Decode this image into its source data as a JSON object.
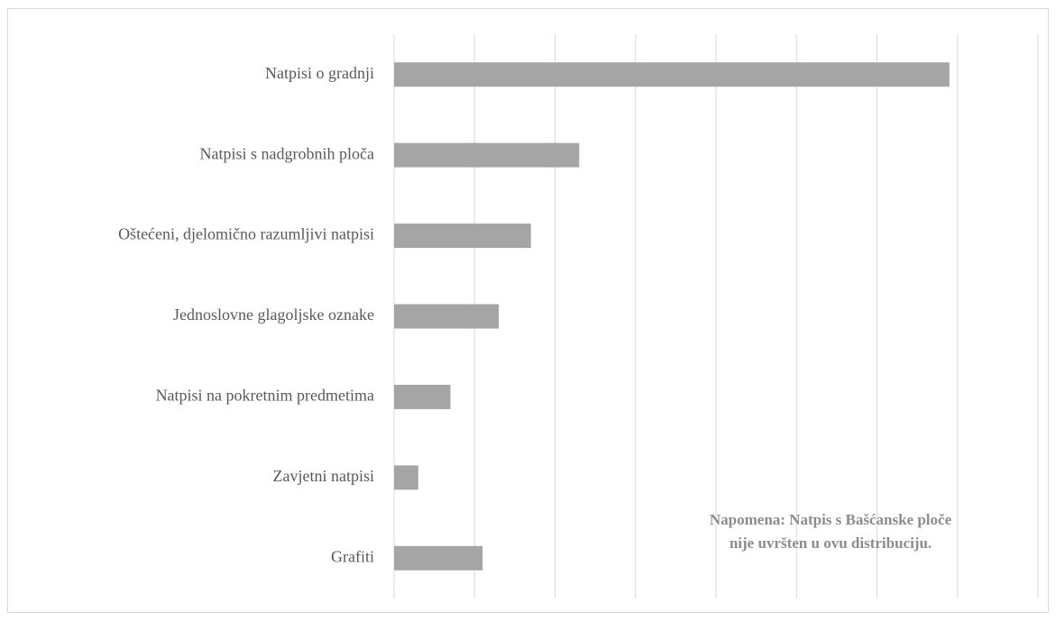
{
  "chart_data": {
    "type": "bar",
    "orientation": "horizontal",
    "categories": [
      "Natpisi o gradnji",
      "Natpisi s nadgrobnih ploča",
      "Oštećeni, djelomično razumljivi natpisi",
      "Jednoslovne glagoljske oznake",
      "Natpisi na pokretnim predmetima",
      "Zavjetni natpisi",
      "Grafiti"
    ],
    "values": [
      69,
      23,
      17,
      13,
      7,
      3,
      11
    ],
    "color": "#a5a5a5",
    "xlim": [
      0,
      80
    ],
    "xticks": [
      0,
      10,
      20,
      30,
      40,
      50,
      60,
      70,
      80
    ],
    "grid": true,
    "annotation": [
      "Napomena: Natpis s Bašćanske ploče",
      "nije uvršten u ovu distribuciju."
    ]
  }
}
